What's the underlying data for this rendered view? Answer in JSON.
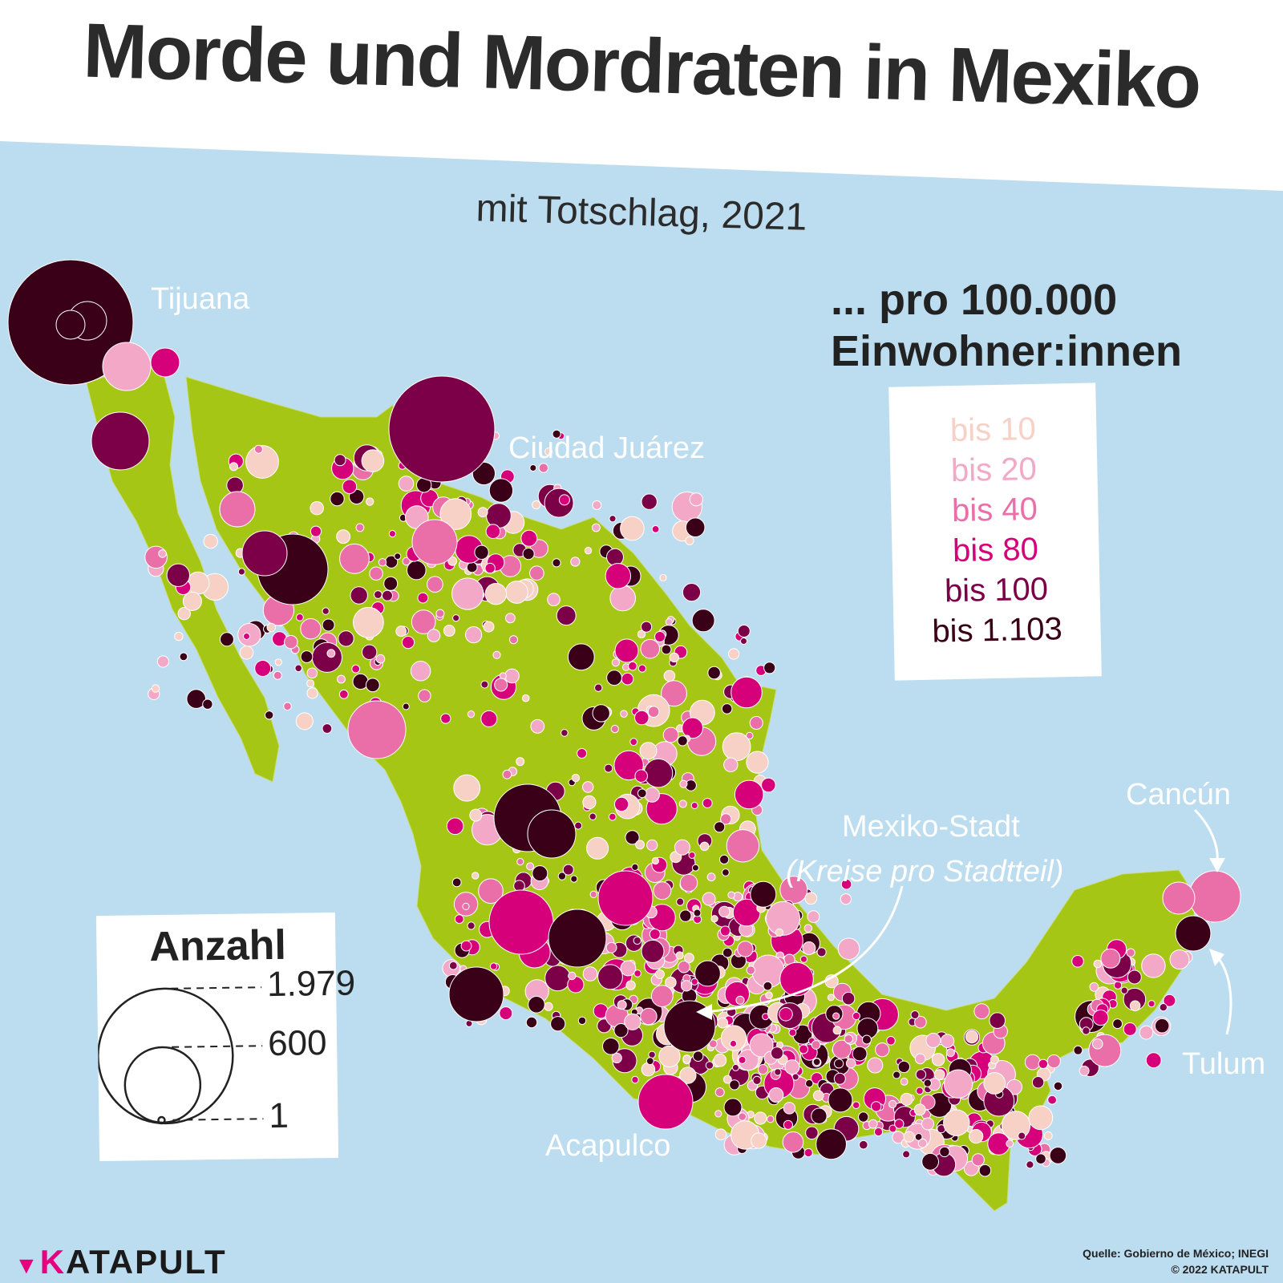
{
  "title": "Morde und Mordraten in Mexiko",
  "subtitle": "mit Totschlag, 2021",
  "rate_legend": {
    "title_line1": "... pro 100.000",
    "title_line2": "Einwohner:innen",
    "classes": [
      {
        "label": "bis 10",
        "color": "#f7d0c6"
      },
      {
        "label": "bis 20",
        "color": "#f2a8c6"
      },
      {
        "label": "bis 40",
        "color": "#ea6ea8"
      },
      {
        "label": "bis 80",
        "color": "#d6007a"
      },
      {
        "label": "bis 100",
        "color": "#7c0048"
      },
      {
        "label": "bis 1.103",
        "color": "#3a0018"
      }
    ]
  },
  "count_legend": {
    "title": "Anzahl",
    "values": [
      "1.979",
      "600",
      "1"
    ]
  },
  "cities": {
    "tijuana": "Tijuana",
    "ciudad_juarez": "Ciudad Juárez",
    "cancun": "Cancún",
    "mexiko_stadt": "Mexiko-Stadt",
    "mexiko_stadt_note": "(Kreise pro Stadtteil)",
    "tulum": "Tulum",
    "acapulco": "Acapulco"
  },
  "colors": {
    "sea": "#bcdcef",
    "land": "#a5c614",
    "title_band": "#ffffff"
  },
  "logo": {
    "k": "K",
    "rest": "ATAPULT"
  },
  "source": {
    "line1": "Quelle: Gobierno de México; INEGI",
    "line2": "© 2022 KATAPULT"
  }
}
